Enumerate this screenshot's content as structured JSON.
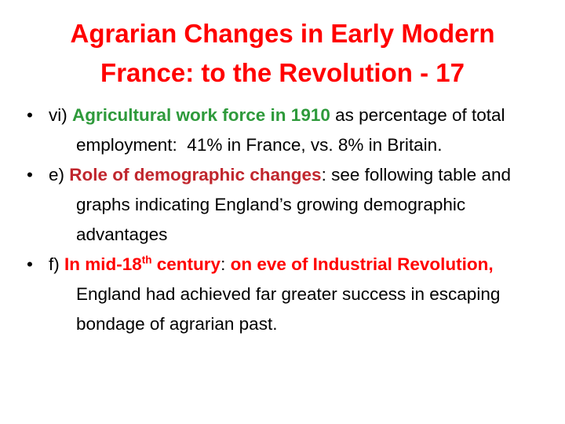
{
  "title": "Agrarian Changes in Early Modern France: to the Revolution - 17",
  "bullets": [
    [
      "vi) ",
      "Agricultural work force in 1910",
      " as percentage of total employment:  41% in France, vs. 8% in Britain."
    ],
    [
      "e) ",
      "Role of demographic changes",
      ": see following table and graphs indicating England’s growing demographic advantages"
    ],
    [
      "f) ",
      "In mid-18",
      "th",
      " century",
      ": ",
      "on eve of Industrial Revolution,",
      " England had achieved far greater success in escaping bondage of agrarian past."
    ]
  ]
}
